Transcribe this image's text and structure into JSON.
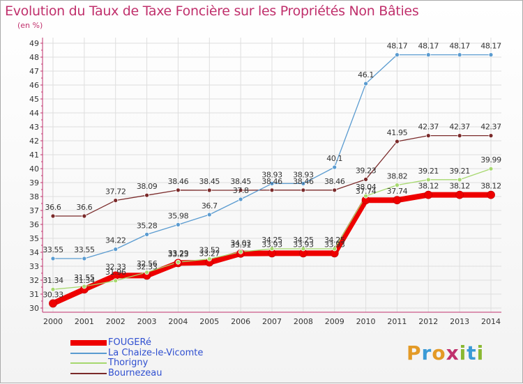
{
  "title": "Evolution du Taux de Taxe Foncière sur les Propriétés Non Bâties",
  "subtitle": "(en %)",
  "logo": [
    "P",
    "r",
    "o",
    "x",
    "i",
    "t",
    "i"
  ],
  "logo_colors": [
    "#e39a26",
    "#3a9ad6",
    "#e39a26",
    "#c0306c",
    "#8ab832",
    "#3a9ad6",
    "#8ab832"
  ],
  "chart_data": {
    "type": "line",
    "title": "Evolution du Taux de Taxe Foncière sur les Propriétés Non Bâties",
    "ylabel": "(en %)",
    "xlabel": "",
    "x": [
      "2000",
      "2001",
      "2002",
      "2003",
      "2004",
      "2005",
      "2006",
      "2007",
      "2008",
      "2009",
      "2010",
      "2011",
      "2012",
      "2013",
      "2014"
    ],
    "ylim": [
      30,
      49
    ],
    "yticks": [
      "30",
      "31",
      "32",
      "33",
      "34",
      "35",
      "36",
      "37",
      "38",
      "39",
      "40",
      "41",
      "42",
      "43",
      "44",
      "45",
      "46",
      "47",
      "48",
      "49"
    ],
    "grid": true,
    "legend_position": "bottom-left",
    "series": [
      {
        "name": "FOUGERé",
        "color": "#ee0000",
        "values": [
          30.33,
          31.34,
          32.33,
          32.33,
          33.23,
          33.27,
          33.91,
          33.93,
          33.93,
          33.93,
          37.74,
          37.74,
          38.12,
          38.12,
          38.12
        ],
        "labels": [
          "30.33",
          "31.34",
          "32.33",
          "32.33",
          "33.23",
          "33.27",
          "33.91",
          "33.93",
          "33.93",
          "33.93",
          "37.74",
          "37.74",
          "38.12",
          "38.12",
          "38.12"
        ]
      },
      {
        "name": "La Chaize-le-Vicomte",
        "color": "#5a9bd0",
        "values": [
          33.55,
          33.55,
          34.22,
          35.28,
          35.98,
          36.7,
          37.8,
          38.93,
          38.93,
          40.1,
          46.1,
          48.17,
          48.17,
          48.17,
          48.17
        ],
        "labels": [
          "33.55",
          "33.55",
          "34.22",
          "35.28",
          "35.98",
          "36.7",
          "37.8",
          "38.93",
          "38.93",
          "40.1",
          "46.1",
          "48.17",
          "48.17",
          "48.17",
          "48.17"
        ]
      },
      {
        "name": "Thorigny",
        "color": "#a6d86e",
        "values": [
          31.34,
          31.55,
          31.96,
          32.56,
          33.29,
          33.52,
          34.03,
          34.25,
          34.25,
          34.25,
          38.04,
          38.82,
          39.21,
          39.21,
          39.99
        ],
        "labels": [
          "31.34",
          "31.55",
          "31.96",
          "32.56",
          "33.29",
          "33.52",
          "34.03",
          "34.25",
          "34.25",
          "34.25",
          "38.04",
          "38.82",
          "39.21",
          "39.21",
          "39.99"
        ]
      },
      {
        "name": "Bournezeau",
        "color": "#7a2a2a",
        "values": [
          36.6,
          36.6,
          37.72,
          38.09,
          38.46,
          38.45,
          38.45,
          38.46,
          38.46,
          38.46,
          39.23,
          41.95,
          42.37,
          42.37,
          42.37
        ],
        "labels": [
          "36.6",
          "36.6",
          "37.72",
          "38.09",
          "38.46",
          "38.45",
          "38.45",
          "38.46",
          "38.46",
          "38.46",
          "39.23",
          "41.95",
          "42.37",
          "42.37",
          "42.37"
        ]
      }
    ]
  }
}
